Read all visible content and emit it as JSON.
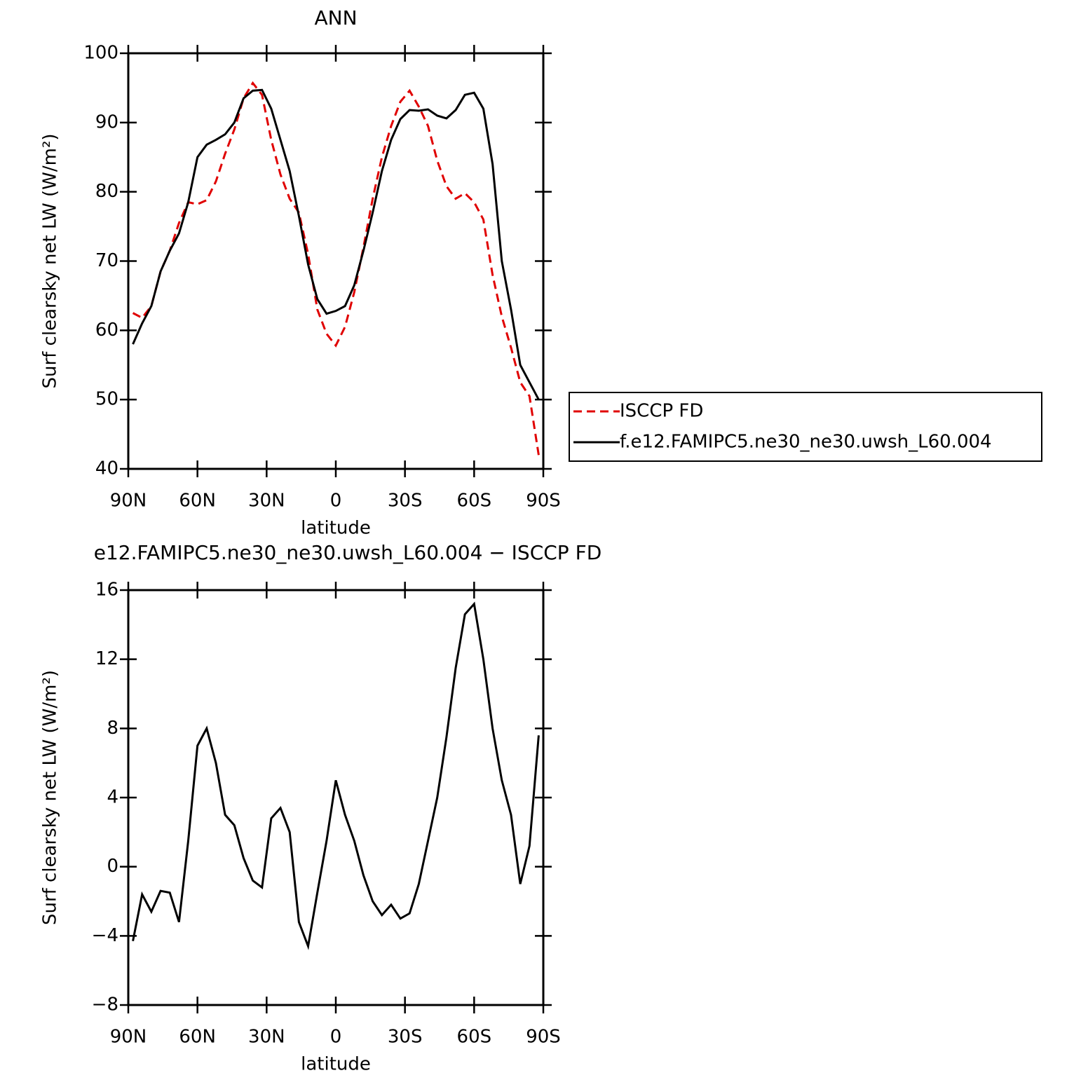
{
  "chart_data": [
    {
      "type": "line",
      "title": "ANN",
      "x_label": "latitude",
      "y_label": "Surf clearsky net LW (W/m²)",
      "x": [
        88,
        84,
        80,
        76,
        72,
        68,
        64,
        60,
        56,
        52,
        48,
        44,
        40,
        36,
        32,
        28,
        24,
        20,
        16,
        12,
        8,
        4,
        0,
        -4,
        -8,
        -12,
        -16,
        -20,
        -24,
        -28,
        -32,
        -36,
        -40,
        -44,
        -48,
        -52,
        -56,
        -60,
        -64,
        -68,
        -72,
        -76,
        -80,
        -84,
        -88
      ],
      "series": [
        {
          "name": "ISCCP FD",
          "color": "#e00000",
          "linestyle": "dashed",
          "values": [
            62.5,
            61.8,
            63.5,
            68.5,
            71.5,
            75.5,
            78.5,
            78.2,
            78.8,
            81.5,
            85.5,
            89,
            93.5,
            95.7,
            94,
            87.5,
            82.5,
            79,
            77,
            71,
            63,
            59.5,
            57.8,
            60.5,
            65.5,
            72,
            79,
            85,
            89.5,
            93,
            94.6,
            92.3,
            89.5,
            84.5,
            80.8,
            79,
            79.8,
            78.5,
            76,
            68,
            62,
            57.5,
            52.5,
            50.5,
            42
          ]
        },
        {
          "name": "f.e12.FAMIPC5.ne30_ne30.uwsh_L60.004",
          "color": "#000000",
          "linestyle": "solid",
          "values": [
            58,
            61,
            63.5,
            68.5,
            71.5,
            74,
            78.5,
            85,
            86.8,
            87.5,
            88.3,
            90,
            93.5,
            94.6,
            94.7,
            92,
            87.5,
            83,
            76.5,
            69.5,
            64.5,
            62.4,
            62.8,
            63.5,
            66.5,
            71.5,
            77,
            83,
            87.5,
            90.5,
            91.8,
            91.7,
            91.9,
            91,
            90.6,
            91.8,
            94,
            94.3,
            92,
            84,
            70,
            63,
            55,
            52.5,
            50
          ]
        }
      ],
      "xlim": [
        90,
        -90
      ],
      "xticks": [
        {
          "value": 90,
          "label": "90N"
        },
        {
          "value": 60,
          "label": "60N"
        },
        {
          "value": 30,
          "label": "30N"
        },
        0,
        {
          "value": -30,
          "label": "30S"
        },
        {
          "value": -60,
          "label": "60S"
        },
        {
          "value": -90,
          "label": "90S"
        }
      ],
      "ylim": [
        40,
        100
      ],
      "yticks": [
        40,
        50,
        60,
        70,
        80,
        90,
        100
      ],
      "legend": "right"
    },
    {
      "type": "line",
      "title": "e12.FAMIPC5.ne30_ne30.uwsh_L60.004 − ISCCP FD",
      "x_label": "latitude",
      "y_label": "Surf clearsky net LW (W/m²)",
      "x": [
        88,
        84,
        80,
        76,
        72,
        68,
        64,
        60,
        56,
        52,
        48,
        44,
        40,
        36,
        32,
        28,
        24,
        20,
        16,
        12,
        8,
        4,
        0,
        -4,
        -8,
        -12,
        -16,
        -20,
        -24,
        -28,
        -32,
        -36,
        -40,
        -44,
        -48,
        -52,
        -56,
        -60,
        -64,
        -68,
        -72,
        -76,
        -80,
        -84,
        -88
      ],
      "series": [
        {
          "color": "#000000",
          "linestyle": "solid",
          "values": [
            -4.3,
            -1.6,
            -2.6,
            -1.4,
            -1.5,
            -3.2,
            1.5,
            7,
            8,
            6,
            3,
            2.4,
            0.5,
            -0.8,
            -1.2,
            2.8,
            3.4,
            2,
            -3.2,
            -4.6,
            -1.5,
            1.5,
            5,
            3,
            1.5,
            -0.5,
            -2,
            -2.8,
            -2.2,
            -3,
            -2.7,
            -1,
            1.5,
            4,
            7.5,
            11.5,
            14.6,
            15.2,
            12,
            8,
            5,
            3,
            -1,
            1.2,
            7.6
          ]
        }
      ],
      "xlim": [
        90,
        -90
      ],
      "xticks": [
        {
          "value": 90,
          "label": "90N"
        },
        {
          "value": 60,
          "label": "60N"
        },
        {
          "value": 30,
          "label": "30N"
        },
        0,
        {
          "value": -30,
          "label": "30S"
        },
        {
          "value": -60,
          "label": "60S"
        },
        {
          "value": -90,
          "label": "90S"
        }
      ],
      "ylim": [
        -8,
        16
      ],
      "yticks": [
        {
          "value": -8,
          "label": "−8"
        },
        {
          "value": -4,
          "label": "−4"
        },
        0,
        4,
        8,
        12,
        16
      ]
    }
  ]
}
